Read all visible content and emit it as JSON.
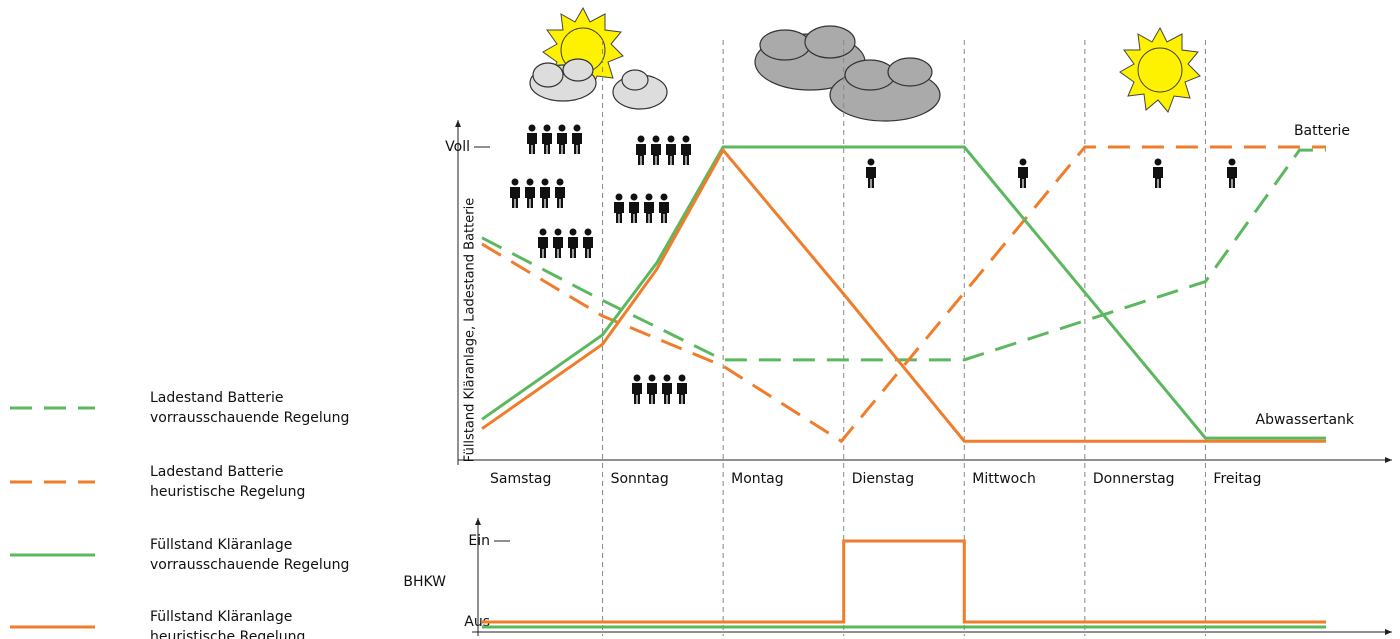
{
  "chart_data": [
    {
      "type": "line",
      "ylabel": "Füllstand Kläranlage,  Ladestand Batterie",
      "categories": [
        "Samstag",
        "Sonntag",
        "Montag",
        "Dienstag",
        "Mittwoch",
        "Donnerstag",
        "Freitag"
      ],
      "xlim": [
        0,
        7
      ],
      "ylim": [
        0,
        100
      ],
      "yticks": [
        {
          "value": 100,
          "label": "Voll"
        }
      ],
      "annotations": [
        "Batterie",
        "Abwassertank"
      ],
      "series": [
        {
          "name": "Ladestand Batterie\nvorrausschauende Regelung",
          "color": "#5cb85f",
          "dashed": true,
          "x": [
            0,
            1,
            2,
            4,
            6,
            6.78,
            7
          ],
          "values": [
            71,
            51,
            32,
            32,
            57,
            99,
            99
          ]
        },
        {
          "name": "Ladestand Batterie\nheuristische Regelung",
          "color": "#ef7d2b",
          "dashed": true,
          "x": [
            0,
            1,
            2,
            2.98,
            5,
            7
          ],
          "values": [
            69,
            46,
            30,
            6,
            100,
            100
          ]
        },
        {
          "name": "Füllstand Kläranlage\nvorrausschauende Regelung",
          "color": "#5cb85f",
          "dashed": false,
          "x": [
            0,
            1,
            1.45,
            2,
            4,
            6,
            7
          ],
          "values": [
            13,
            40,
            63,
            100,
            100,
            7,
            7
          ]
        },
        {
          "name": "Füllstand Kläranlage\nheuristische Regelung",
          "color": "#ef7d2b",
          "dashed": false,
          "x": [
            0,
            1,
            1.45,
            2,
            3,
            4,
            7
          ],
          "values": [
            10,
            37,
            61,
            99,
            53,
            6,
            6
          ]
        }
      ]
    },
    {
      "type": "step",
      "ylabel": "BHKW",
      "xlim": [
        0,
        7
      ],
      "ylim": [
        0,
        1
      ],
      "yticks": [
        {
          "value": 1,
          "label": "Ein"
        },
        {
          "value": 0,
          "label": "Aus"
        }
      ],
      "series": [
        {
          "color": "#ef7d2b",
          "x": [
            0,
            3,
            3,
            4,
            4,
            7
          ],
          "values": [
            0,
            0,
            1,
            1,
            0,
            0
          ]
        },
        {
          "color": "#5cb85f",
          "x": [
            0,
            7
          ],
          "values": [
            0,
            0
          ]
        }
      ]
    }
  ]
}
